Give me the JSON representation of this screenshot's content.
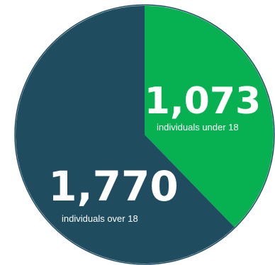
{
  "chart_data": {
    "type": "pie",
    "slices": [
      {
        "value": 1073,
        "value_label": "1,073",
        "label": "individuals under 18",
        "color": "#07b152"
      },
      {
        "value": 1770,
        "value_label": "1,770",
        "label": "individuals over 18",
        "color": "#1f4c5e"
      }
    ],
    "start": "top",
    "direction": "clockwise",
    "outline_color": "#1f4c5e"
  }
}
